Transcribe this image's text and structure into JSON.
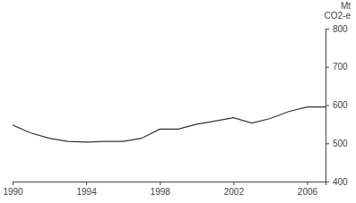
{
  "chart_data": {
    "type": "line",
    "y_label": "Mt CO2-e",
    "x": [
      1990,
      1991,
      1992,
      1993,
      1994,
      1995,
      1996,
      1997,
      1998,
      1999,
      2000,
      2001,
      2002,
      2003,
      2004,
      2005,
      2006,
      2007
    ],
    "values": [
      548,
      527,
      513,
      505,
      503,
      505,
      505,
      513,
      537,
      537,
      550,
      558,
      567,
      553,
      565,
      583,
      595,
      595
    ],
    "color": "#333333",
    "xlim": [
      1990,
      2007
    ],
    "xticks": [
      1990,
      1994,
      1998,
      2002,
      2006
    ],
    "ylim": [
      400,
      800
    ],
    "yticks": [
      400,
      500,
      600,
      700,
      800
    ],
    "grid": false
  }
}
